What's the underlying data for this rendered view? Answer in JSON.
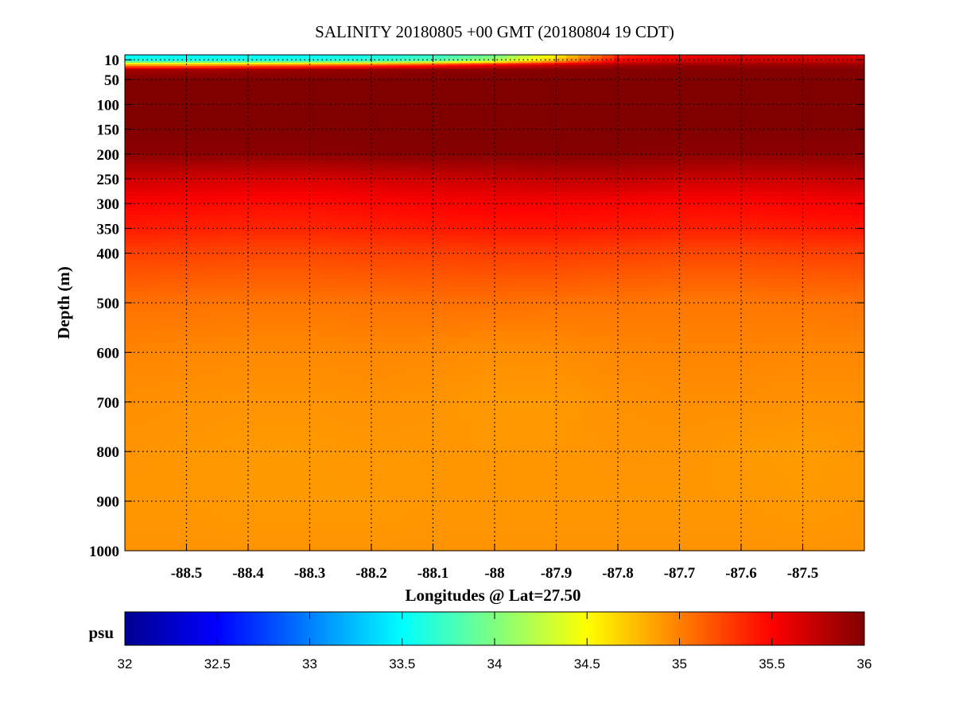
{
  "chart_data": {
    "type": "heatmap",
    "title": "SALINITY 20180805 +00 GMT (20180804 19 CDT)",
    "xlabel": "Longitudes @ Lat=27.50",
    "ylabel": "Depth (m)",
    "xlim": [
      -88.6,
      -87.4
    ],
    "ylim": [
      1000,
      0
    ],
    "y_inverted": true,
    "grid": true,
    "xticks": [
      "-88.5",
      "-88.4",
      "-88.3",
      "-88.2",
      "-88.1",
      "-88",
      "-87.9",
      "-87.8",
      "-87.7",
      "-87.6",
      "-87.5"
    ],
    "yticks": [
      "10",
      "50",
      "100",
      "150",
      "200",
      "250",
      "300",
      "350",
      "400",
      "500",
      "600",
      "700",
      "800",
      "900",
      "1000"
    ],
    "colormap": "jet",
    "colorbar": {
      "label": "psu",
      "range": [
        32,
        36
      ],
      "ticks": [
        "32",
        "32.5",
        "33",
        "33.5",
        "34",
        "34.5",
        "35",
        "35.5",
        "36"
      ]
    },
    "longitudes": [
      -88.6,
      -88.5,
      -88.4,
      -88.3,
      -88.2,
      -88.1,
      -88.0,
      -87.9,
      -87.8,
      -87.7,
      -87.6,
      -87.5,
      -87.4
    ],
    "depths": [
      0,
      12,
      20,
      30,
      50,
      100,
      150,
      200,
      250,
      300,
      350,
      400,
      500,
      600,
      700,
      800,
      900,
      1000
    ],
    "values": [
      [
        33.5,
        33.5,
        33.5,
        33.5,
        33.55,
        33.65,
        33.9,
        34.5,
        35.3,
        35.5,
        35.6,
        35.6,
        35.6
      ],
      [
        33.6,
        33.6,
        33.6,
        33.65,
        33.7,
        33.85,
        34.2,
        34.8,
        35.5,
        35.65,
        35.7,
        35.7,
        35.7
      ],
      [
        34.8,
        34.8,
        34.9,
        35.0,
        35.1,
        35.3,
        35.5,
        35.7,
        35.85,
        35.9,
        35.9,
        35.9,
        35.9
      ],
      [
        35.85,
        35.85,
        35.88,
        35.9,
        35.92,
        35.94,
        35.96,
        35.97,
        35.98,
        35.98,
        35.98,
        35.98,
        35.98
      ],
      [
        36.0,
        36.0,
        36.0,
        36.0,
        36.0,
        36.0,
        36.0,
        36.0,
        36.0,
        36.0,
        36.0,
        36.0,
        36.0
      ],
      [
        36.0,
        36.0,
        36.0,
        36.0,
        36.0,
        36.0,
        36.0,
        36.0,
        36.0,
        36.0,
        36.0,
        36.0,
        36.0
      ],
      [
        36.0,
        36.0,
        36.0,
        36.0,
        36.0,
        36.0,
        36.0,
        36.0,
        36.0,
        36.0,
        36.0,
        36.0,
        36.0
      ],
      [
        35.95,
        35.95,
        35.95,
        35.95,
        35.97,
        35.98,
        35.98,
        35.98,
        35.97,
        35.95,
        35.95,
        35.95,
        35.95
      ],
      [
        35.7,
        35.68,
        35.66,
        35.65,
        35.68,
        35.7,
        35.72,
        35.75,
        35.75,
        35.72,
        35.7,
        35.72,
        35.75
      ],
      [
        35.5,
        35.48,
        35.46,
        35.45,
        35.48,
        35.5,
        35.52,
        35.52,
        35.5,
        35.48,
        35.48,
        35.5,
        35.52
      ],
      [
        35.4,
        35.38,
        35.36,
        35.36,
        35.38,
        35.4,
        35.42,
        35.42,
        35.4,
        35.38,
        35.38,
        35.4,
        35.42
      ],
      [
        35.25,
        35.24,
        35.22,
        35.22,
        35.24,
        35.25,
        35.26,
        35.26,
        35.24,
        35.22,
        35.22,
        35.24,
        35.25
      ],
      [
        35.06,
        35.05,
        35.04,
        35.04,
        35.05,
        35.06,
        35.06,
        35.05,
        35.04,
        35.03,
        35.03,
        35.04,
        35.05
      ],
      [
        34.98,
        34.97,
        34.96,
        34.96,
        34.97,
        34.96,
        34.94,
        34.95,
        34.97,
        34.98,
        34.98,
        34.97,
        34.97
      ],
      [
        34.94,
        34.93,
        34.92,
        34.92,
        34.93,
        34.92,
        34.9,
        34.9,
        34.93,
        34.94,
        34.94,
        34.93,
        34.93
      ],
      [
        34.92,
        34.91,
        34.9,
        34.9,
        34.91,
        34.91,
        34.91,
        34.91,
        34.92,
        34.92,
        34.9,
        34.89,
        34.91
      ],
      [
        34.91,
        34.91,
        34.9,
        34.9,
        34.9,
        34.91,
        34.91,
        34.91,
        34.91,
        34.91,
        34.91,
        34.9,
        34.91
      ],
      [
        34.92,
        34.92,
        34.92,
        34.92,
        34.92,
        34.92,
        34.92,
        34.92,
        34.92,
        34.92,
        34.92,
        34.92,
        34.92
      ]
    ]
  }
}
